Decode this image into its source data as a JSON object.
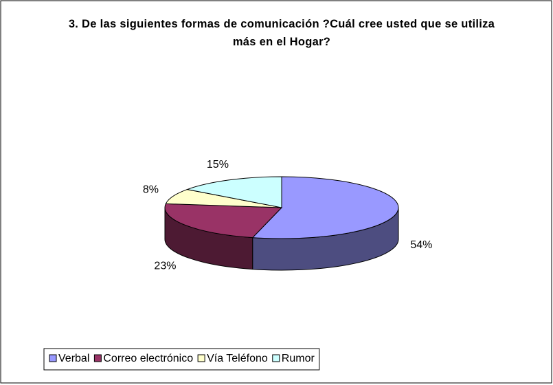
{
  "chart_data": {
    "type": "pie3d",
    "title": "3. De las siguientes formas de comunicación ?Cuál cree usted que se utiliza más en el Hogar?",
    "categories": [
      "Verbal",
      "Correo electrónico",
      "Vía Teléfono",
      "Rumor"
    ],
    "values": [
      54,
      23,
      8,
      15
    ],
    "value_labels": [
      "54%",
      "23%",
      "8%",
      "15%"
    ],
    "colors": [
      "#9999ff",
      "#993366",
      "#ffffcc",
      "#ccffff"
    ],
    "legend": "bottom"
  }
}
